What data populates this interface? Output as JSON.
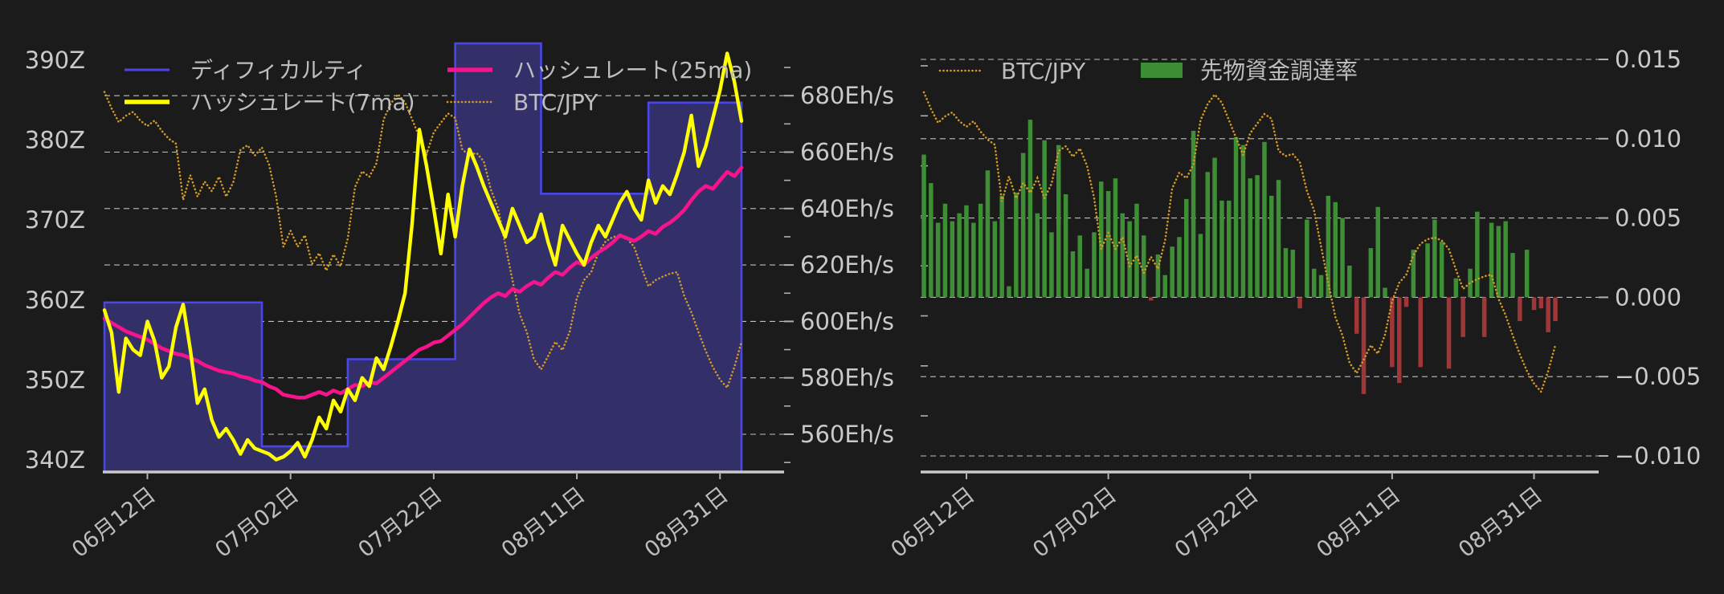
{
  "page": {
    "background": "#1b1b1b"
  },
  "colors": {
    "background": "#1b1b1b",
    "grid": "#e8e8e8",
    "axis_line": "#c9c9c9",
    "tick": "#b0b0b0",
    "text": "#c9c9c9",
    "difficulty_line": "#4a46e8",
    "difficulty_fill": "#333069",
    "hashrate7_line": "#ffff00",
    "hashrate25_line": "#f5148c",
    "btcjpy_line": "#d39a27",
    "funding_positive": "#3e8e35",
    "funding_negative": "#a13638"
  },
  "chart_data": [
    {
      "type": "line",
      "title": "",
      "legend_position": "upper-left, two rows",
      "grid": "horizontal dashed, aligned to right axis",
      "legend": [
        {
          "label": "ディフィカルティ",
          "swatch": "line",
          "color_key": "difficulty_line",
          "row": 0,
          "col": 0
        },
        {
          "label": "ハッシュレート(25ma)",
          "swatch": "line",
          "color_key": "hashrate25_line",
          "row": 0,
          "col": 1
        },
        {
          "label": "ハッシュレート(7ma)",
          "swatch": "line",
          "color_key": "hashrate7_line",
          "row": 1,
          "col": 0
        },
        {
          "label": "BTC/JPY",
          "swatch": "dotted",
          "color_key": "btcjpy_line",
          "row": 1,
          "col": 1
        }
      ],
      "x_axis": {
        "tick_labels": [
          "06月12日",
          "07月02日",
          "07月22日",
          "08月11日",
          "08月31日"
        ],
        "tick_day_index": [
          6,
          26,
          46,
          66,
          86
        ],
        "days": 90,
        "rotation_deg": -38
      },
      "y_left_axis": {
        "tick_labels": [
          "390Z",
          "380Z",
          "370Z",
          "360Z",
          "350Z",
          "340Z"
        ],
        "tick_values": [
          390,
          380,
          370,
          360,
          350,
          340
        ],
        "range": [
          338,
          394.5
        ]
      },
      "y_right_axis": {
        "tick_labels": [
          "680Eh/s",
          "660Eh/s",
          "640Eh/s",
          "620Eh/s",
          "600Eh/s",
          "580Eh/s",
          "560Eh/s"
        ],
        "tick_values": [
          680,
          660,
          640,
          620,
          600,
          580,
          560
        ],
        "minor_ticks": [
          690,
          670,
          650,
          630,
          610,
          590,
          570,
          550
        ],
        "range": [
          546.5,
          705
        ]
      },
      "series": [
        {
          "name": "ディフィカルティ",
          "type": "step-area",
          "axis": "left",
          "unit": "Z",
          "steps_day_value": [
            [
              0,
              359.7
            ],
            [
              22,
              341.7
            ],
            [
              34,
              352.6
            ],
            [
              49,
              392.1
            ],
            [
              61,
              373.3
            ],
            [
              76,
              384.7
            ]
          ],
          "end_day": 89
        },
        {
          "name": "ハッシュレート(7ma)",
          "type": "line",
          "axis": "right",
          "unit": "Eh/s",
          "values": [
            604,
            596,
            575,
            594,
            590,
            588,
            600,
            593,
            580,
            584,
            598,
            606,
            590,
            571,
            576,
            565,
            559,
            562,
            558,
            553,
            558,
            555,
            554,
            553,
            551,
            552,
            554,
            557,
            552,
            558,
            566,
            562,
            572,
            568,
            576,
            572,
            580,
            577,
            587,
            583,
            591,
            600,
            610,
            635,
            668,
            655,
            640,
            624,
            645,
            630,
            648,
            661,
            655,
            648,
            642,
            636,
            630,
            640,
            634,
            628,
            630,
            638,
            628,
            620,
            634,
            629,
            624,
            620,
            628,
            634,
            630,
            636,
            642,
            646,
            640,
            636,
            650,
            642,
            648,
            645,
            652,
            660,
            673,
            655,
            662,
            672,
            682,
            695,
            685,
            671
          ]
        },
        {
          "name": "ハッシュレート(25ma)",
          "type": "line",
          "axis": "right",
          "unit": "Eh/s",
          "values": [
            601,
            599.5,
            598,
            596.5,
            595.5,
            594.5,
            593.5,
            592,
            590.5,
            589.5,
            588.5,
            588,
            587,
            586,
            584.5,
            583.5,
            582.5,
            582,
            581.5,
            580.5,
            580,
            579,
            578.5,
            577,
            576,
            574,
            573.5,
            573,
            573,
            574,
            575,
            574,
            575.5,
            574.5,
            576,
            577.5,
            577,
            578.5,
            578,
            580,
            582,
            584,
            586,
            588,
            590,
            591,
            592.5,
            593,
            595,
            597,
            599,
            601.5,
            604,
            606.5,
            608.5,
            610,
            609,
            611.5,
            610.5,
            612.5,
            614,
            613,
            615.5,
            617.5,
            616.5,
            619,
            621,
            620,
            622.5,
            624.5,
            626,
            628,
            630.5,
            629.5,
            628.5,
            630,
            632,
            631,
            633.5,
            635,
            637,
            639.5,
            643,
            646,
            648,
            647,
            650,
            653,
            651.5,
            654.5
          ]
        },
        {
          "name": "BTC/JPY",
          "type": "dotted-line",
          "axis": "normalized-overlay (price axis not shown, 0=high 1=low)",
          "values": [
            0.074,
            0.125,
            0.168,
            0.148,
            0.136,
            0.163,
            0.18,
            0.163,
            0.195,
            0.22,
            0.235,
            0.41,
            0.333,
            0.4,
            0.353,
            0.383,
            0.338,
            0.4,
            0.355,
            0.254,
            0.24,
            0.272,
            0.247,
            0.3,
            0.4,
            0.556,
            0.506,
            0.556,
            0.52,
            0.61,
            0.576,
            0.63,
            0.58,
            0.617,
            0.53,
            0.37,
            0.321,
            0.338,
            0.296,
            0.16,
            0.11,
            0.081,
            0.106,
            0.16,
            0.214,
            0.267,
            0.2,
            0.17,
            0.141,
            0.155,
            0.254,
            0.27,
            0.264,
            0.29,
            0.378,
            0.437,
            0.55,
            0.66,
            0.765,
            0.822,
            0.906,
            0.938,
            0.896,
            0.852,
            0.878,
            0.82,
            0.716,
            0.66,
            0.635,
            0.575,
            0.54,
            0.526,
            0.521,
            0.53,
            0.556,
            0.62,
            0.679,
            0.66,
            0.649,
            0.64,
            0.635,
            0.709,
            0.76,
            0.822,
            0.88,
            0.931,
            0.97,
            0.995,
            0.931,
            0.852
          ]
        }
      ]
    },
    {
      "type": "bar",
      "title": "",
      "legend_position": "upper-center, one row",
      "grid": "horizontal dashed, aligned to right axis",
      "legend": [
        {
          "label": "BTC/JPY",
          "swatch": "dotted",
          "color_key": "btcjpy_line"
        },
        {
          "label": "先物資金調達率",
          "swatch": "rect",
          "color_key": "funding_positive"
        }
      ],
      "x_axis": {
        "tick_labels": [
          "06月12日",
          "07月02日",
          "07月22日",
          "08月11日",
          "08月31日"
        ],
        "tick_day_index": [
          6,
          26,
          46,
          66,
          86
        ],
        "days": 90,
        "rotation_deg": -38
      },
      "y_right_axis": {
        "tick_labels": [
          "0.015",
          "0.010",
          "0.005",
          "0.000",
          "−0.005",
          "−0.010"
        ],
        "tick_values": [
          0.015,
          0.01,
          0.005,
          0,
          -0.005,
          -0.01
        ],
        "range": [
          -0.011,
          0.0172
        ]
      },
      "series": [
        {
          "name": "先物資金調達率",
          "type": "bar",
          "axis": "right",
          "values": [
            0.009,
            0.0072,
            0.0047,
            0.0059,
            0.0048,
            0.0053,
            0.0058,
            0.0047,
            0.0059,
            0.008,
            0.0048,
            0.0064,
            0.0007,
            0.0066,
            0.0091,
            0.0112,
            0.0053,
            0.0099,
            0.0041,
            0.0096,
            0.0065,
            0.0029,
            0.0039,
            0.0018,
            0.0041,
            0.0073,
            0.0067,
            0.0075,
            0.0053,
            0.0048,
            0.0059,
            0.0039,
            -0.0002,
            0.0027,
            0.0014,
            0.0032,
            0.0038,
            0.0062,
            0.0105,
            0.004,
            0.0079,
            0.0088,
            0.0061,
            0.0061,
            0.0101,
            0.0096,
            0.0075,
            0.0077,
            0.0098,
            0.0064,
            0.0074,
            0.0031,
            0.003,
            -0.0007,
            0.0049,
            0.0018,
            0.0014,
            0.0064,
            0.006,
            0.005,
            0.002,
            -0.0023,
            -0.0061,
            0.0031,
            0.0057,
            0.0006,
            -0.0044,
            -0.0054,
            -0.0006,
            0.003,
            -0.0044,
            0.0034,
            0.0049,
            0.0035,
            -0.0045,
            0.0012,
            -0.0025,
            0.0018,
            0.0054,
            -0.0025,
            0.0047,
            0.0045,
            0.0048,
            0.0028,
            -0.0015,
            0.003,
            -0.0008,
            -0.0007,
            -0.0022,
            -0.0015
          ]
        },
        {
          "name": "BTC/JPY",
          "type": "dotted-line",
          "axis": "normalized-overlay (price axis not shown, 0=high 1=low)",
          "values": [
            0.074,
            0.125,
            0.168,
            0.148,
            0.136,
            0.163,
            0.18,
            0.163,
            0.195,
            0.22,
            0.235,
            0.41,
            0.333,
            0.4,
            0.353,
            0.383,
            0.338,
            0.4,
            0.355,
            0.254,
            0.24,
            0.272,
            0.247,
            0.3,
            0.4,
            0.556,
            0.506,
            0.556,
            0.52,
            0.61,
            0.576,
            0.63,
            0.58,
            0.617,
            0.53,
            0.37,
            0.321,
            0.338,
            0.296,
            0.16,
            0.11,
            0.081,
            0.106,
            0.16,
            0.214,
            0.267,
            0.2,
            0.17,
            0.141,
            0.155,
            0.254,
            0.27,
            0.264,
            0.29,
            0.378,
            0.437,
            0.55,
            0.66,
            0.765,
            0.822,
            0.906,
            0.938,
            0.896,
            0.852,
            0.878,
            0.82,
            0.716,
            0.66,
            0.635,
            0.575,
            0.54,
            0.526,
            0.521,
            0.53,
            0.556,
            0.62,
            0.679,
            0.66,
            0.649,
            0.64,
            0.635,
            0.709,
            0.76,
            0.822,
            0.88,
            0.931,
            0.97,
            0.995,
            0.931,
            0.852
          ]
        }
      ]
    }
  ]
}
